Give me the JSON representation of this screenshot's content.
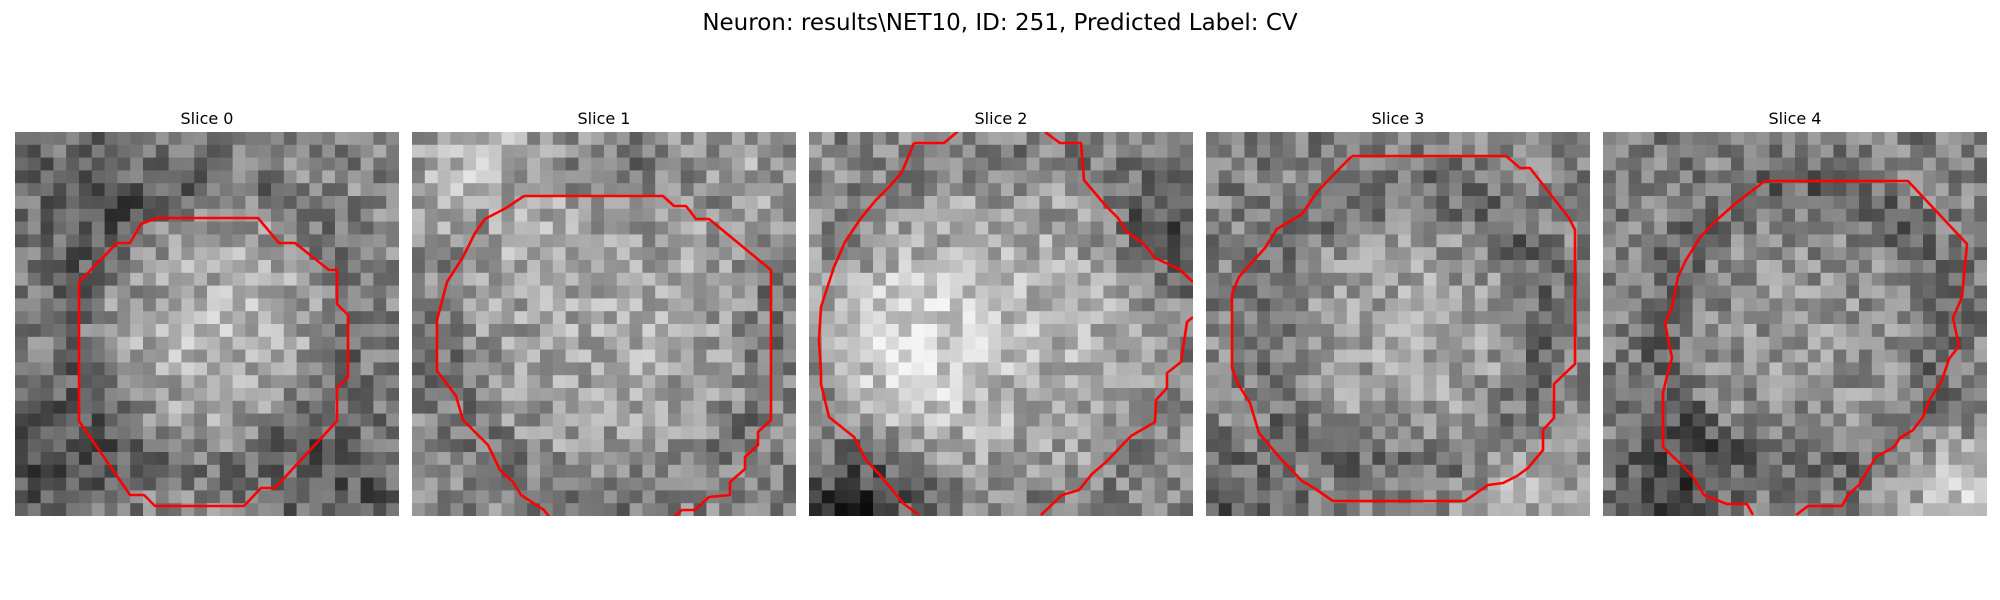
{
  "figure": {
    "title": "Neuron: results\\NET10, ID: 251, Predicted Label: CV"
  },
  "panels": [
    {
      "title": "Slice 0"
    },
    {
      "title": "Slice 1"
    },
    {
      "title": "Slice 2"
    },
    {
      "title": "Slice 3"
    },
    {
      "title": "Slice 4"
    }
  ],
  "colors": {
    "contour": "#ff0000",
    "background": "#ffffff"
  }
}
